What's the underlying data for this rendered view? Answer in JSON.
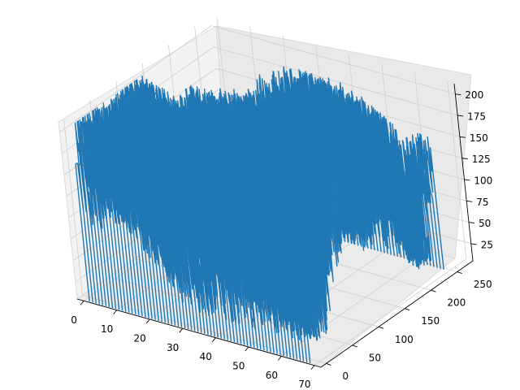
{
  "chart_data": {
    "type": "line",
    "projection": "3d",
    "title": "",
    "xlabel": "",
    "ylabel": "",
    "zlabel": "",
    "x_ticks": [
      0,
      10,
      20,
      30,
      40,
      50,
      60,
      70
    ],
    "y_ticks": [
      0,
      50,
      100,
      150,
      200,
      250
    ],
    "z_ticks": [
      25,
      50,
      75,
      100,
      125,
      150,
      175,
      200
    ],
    "xlim": [
      -2,
      72
    ],
    "ylim": [
      -10,
      280
    ],
    "zlim": [
      5,
      212
    ],
    "grid": true,
    "legend": "none",
    "series": [
      {
        "color": "#1f77b4",
        "n_traces": 68,
        "points_per_trace": 256,
        "x_range": [
          0,
          67
        ],
        "y_range": [
          0,
          255
        ],
        "edge_level": 160,
        "baseline": 0,
        "body_min": 20,
        "body_max": 205
      }
    ]
  }
}
